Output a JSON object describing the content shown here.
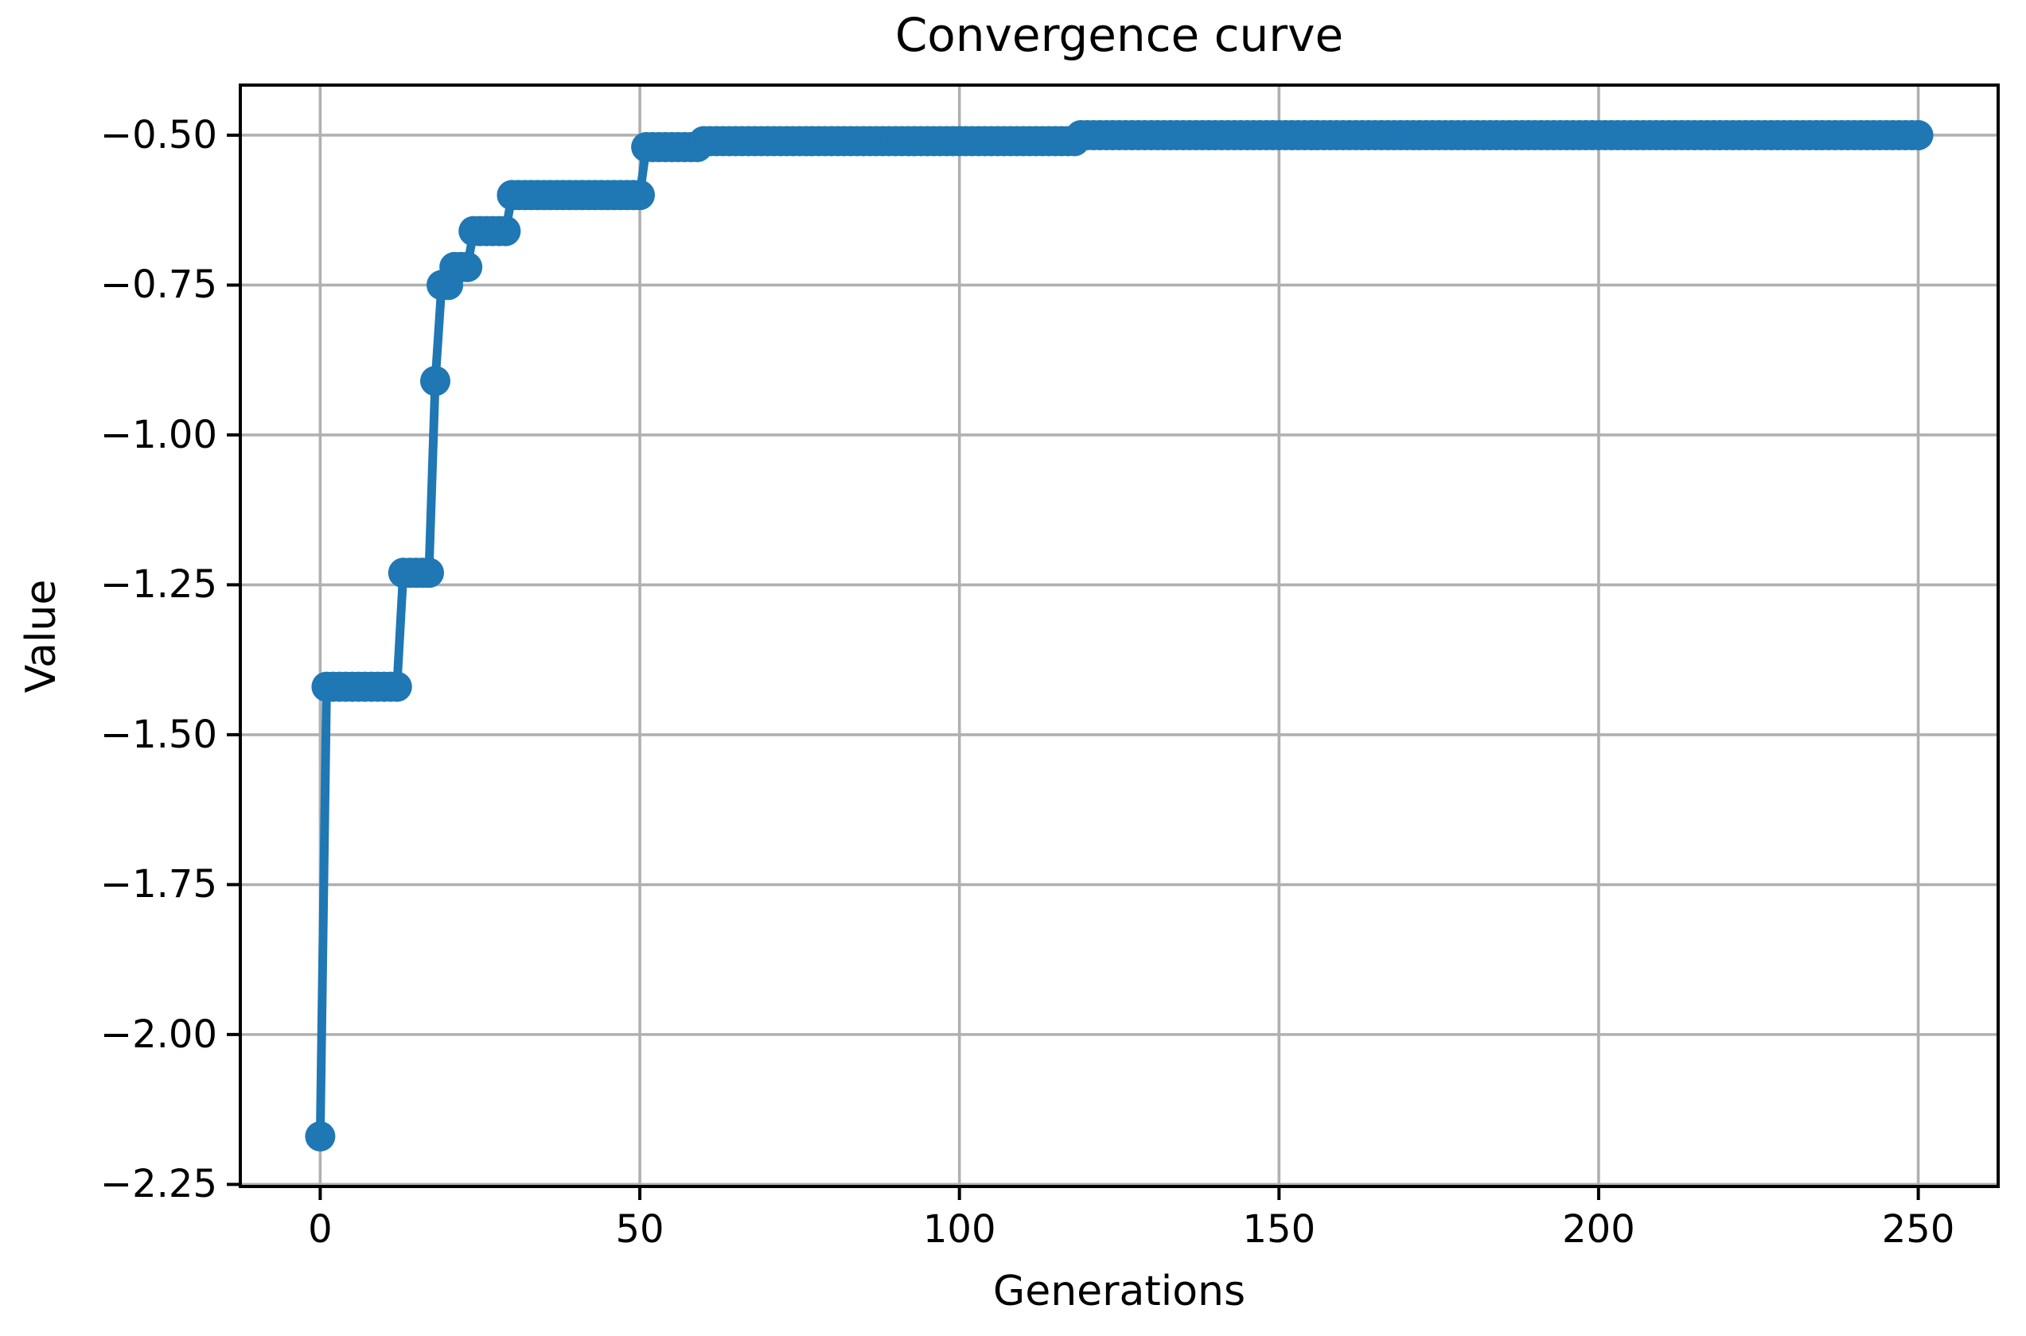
{
  "chart_data": {
    "type": "line",
    "title": "Convergence curve",
    "xlabel": "Generations",
    "ylabel": "Value",
    "grid": true,
    "legend": false,
    "xlim": [
      -12.5,
      262.5
    ],
    "ylim": [
      -2.2535,
      -0.4165
    ],
    "x_ticks": [
      0,
      50,
      100,
      150,
      200,
      250
    ],
    "x_tick_labels": [
      "0",
      "50",
      "100",
      "150",
      "200",
      "250"
    ],
    "y_ticks": [
      -0.5,
      -0.75,
      -1.0,
      -1.25,
      -1.5,
      -1.75,
      -2.0,
      -2.25
    ],
    "y_tick_labels": [
      "−0.50",
      "−0.75",
      "−1.00",
      "−1.25",
      "−1.50",
      "−1.75",
      "−2.00",
      "−2.25"
    ],
    "line_color": "#1f77b4",
    "grid_color": "#b0b0b0",
    "axis_color": "#000000",
    "background_color": "#ffffff",
    "marker": "o",
    "series": [
      {
        "segments": [
          {
            "from": 0,
            "to": 0,
            "value": -2.17
          },
          {
            "from": 1,
            "to": 12,
            "value": -1.42
          },
          {
            "from": 13,
            "to": 17,
            "value": -1.23
          },
          {
            "from": 18,
            "to": 18,
            "value": -0.91
          },
          {
            "from": 19,
            "to": 20,
            "value": -0.75
          },
          {
            "from": 21,
            "to": 23,
            "value": -0.72
          },
          {
            "from": 24,
            "to": 29,
            "value": -0.66
          },
          {
            "from": 30,
            "to": 50,
            "value": -0.6
          },
          {
            "from": 51,
            "to": 59,
            "value": -0.52
          },
          {
            "from": 60,
            "to": 118,
            "value": -0.51
          },
          {
            "from": 119,
            "to": 250,
            "value": -0.5
          }
        ]
      }
    ]
  }
}
